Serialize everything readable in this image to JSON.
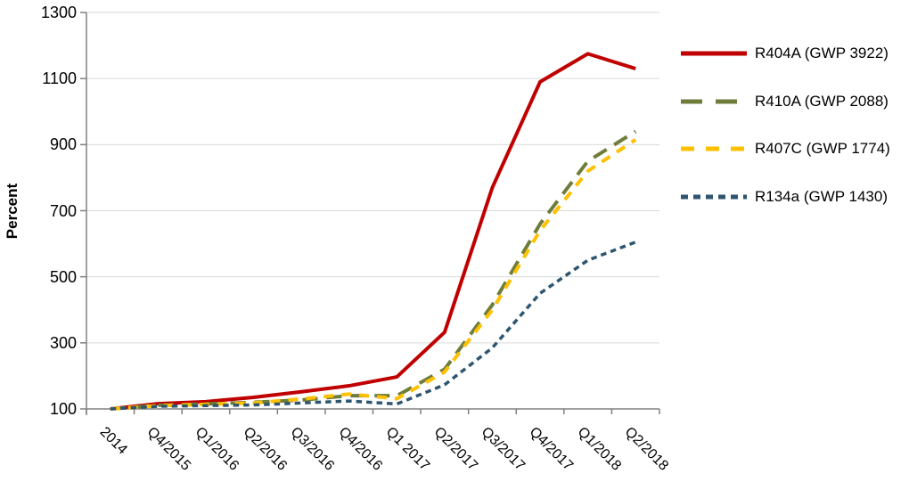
{
  "chart_data": {
    "type": "line",
    "title": "",
    "ylabel": "Percent",
    "xlabel": "",
    "ylim": [
      100,
      1300
    ],
    "yticks": [
      100,
      300,
      500,
      700,
      900,
      1100,
      1300
    ],
    "grid": true,
    "legend_position": "right",
    "categories": [
      "2014",
      "Q4/2015",
      "Q1/2016",
      "Q2/2016",
      "Q3/2016",
      "Q4/2016",
      "Q1 2017",
      "Q2/2017",
      "Q3/2017",
      "Q4/2017",
      "Q1/2018",
      "Q2/2018"
    ],
    "series": [
      {
        "name": "R404A (GWP 3922)",
        "color": "#C00000",
        "dash": "solid",
        "values": [
          100,
          116,
          122,
          135,
          152,
          170,
          197,
          332,
          770,
          1090,
          1175,
          1130
        ]
      },
      {
        "name": "R410A (GWP 2088)",
        "color": "#6F7D3B",
        "dash": "long-dash",
        "values": [
          100,
          111,
          115,
          120,
          127,
          140,
          140,
          220,
          415,
          660,
          850,
          940
        ]
      },
      {
        "name": "R407C (GWP 1774)",
        "color": "#FFC000",
        "dash": "dash",
        "values": [
          100,
          110,
          114,
          118,
          130,
          145,
          131,
          212,
          400,
          640,
          820,
          915
        ]
      },
      {
        "name": "R134a (GWP 1430)",
        "color": "#2E5570",
        "dash": "short-dash",
        "values": [
          100,
          108,
          110,
          112,
          118,
          124,
          115,
          173,
          285,
          450,
          550,
          605
        ]
      }
    ]
  },
  "colors": {
    "axis": "#808080",
    "gridline": "#D9D9D9",
    "text": "#000000",
    "background": "#FFFFFF"
  }
}
